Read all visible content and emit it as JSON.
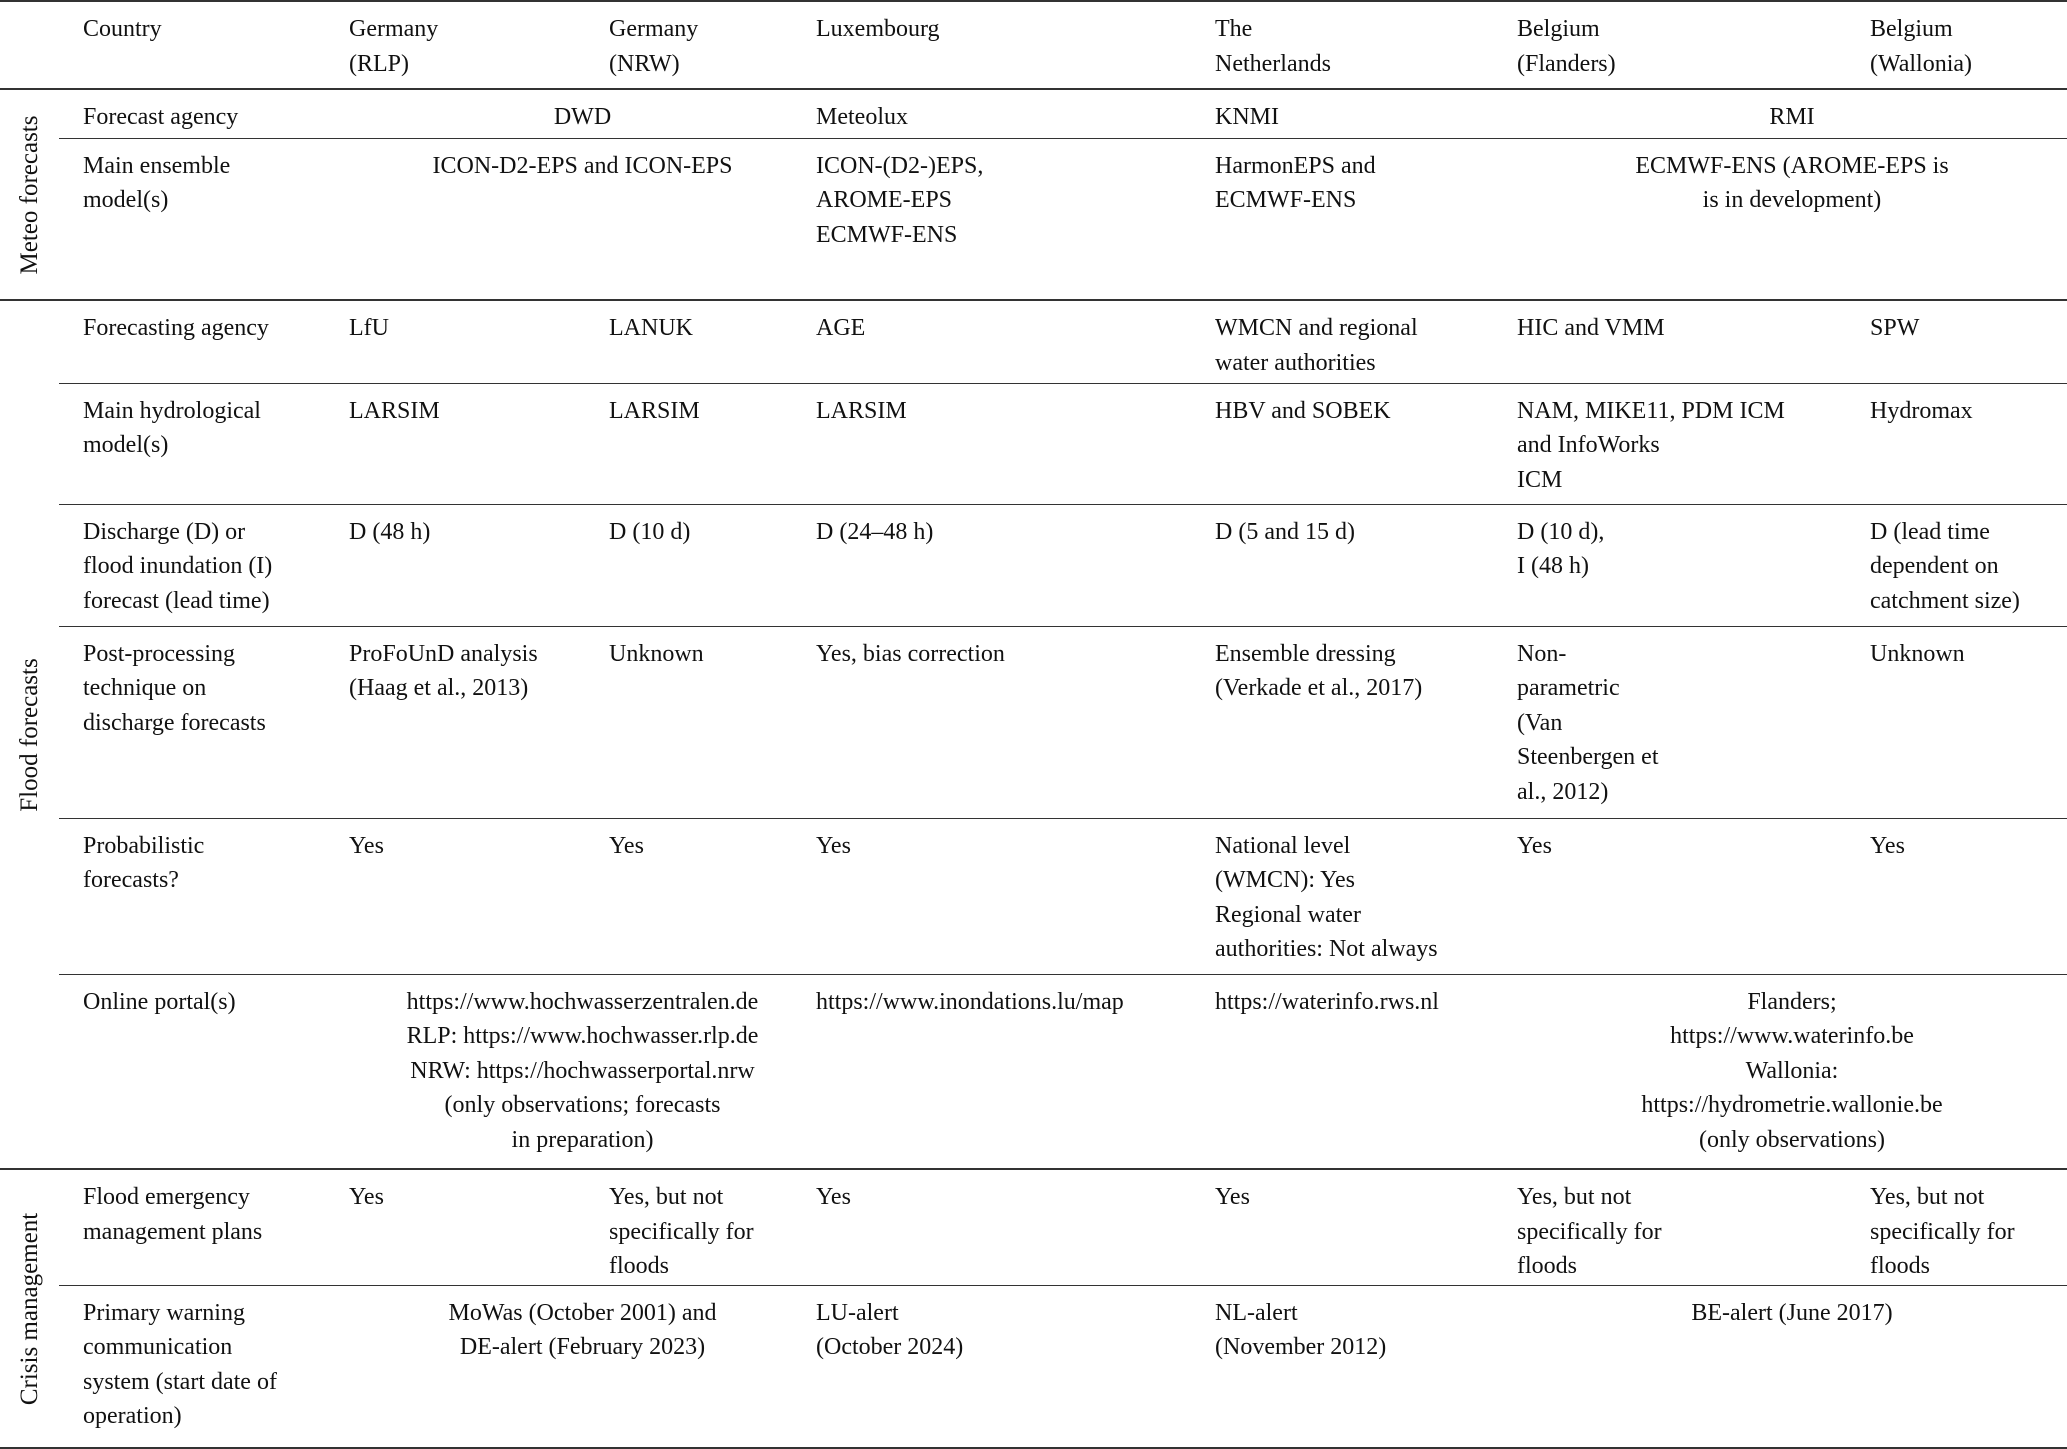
{
  "header": [
    "Country",
    [
      "Germany",
      "(RLP)"
    ],
    [
      "Germany",
      "(NRW)"
    ],
    [
      "Luxembourg"
    ],
    [
      "The",
      "Netherlands"
    ],
    [
      "Belgium",
      "(Flanders)"
    ],
    [
      "Belgium",
      "(Wallonia)"
    ]
  ],
  "groups": [
    {
      "label": "Meteo forecasts",
      "rows": [
        {
          "label": [
            "Forecast agency"
          ],
          "cells": [
            {
              "span": 2,
              "center": true,
              "lines": [
                "DWD"
              ]
            },
            {
              "lines": [
                "Meteolux"
              ]
            },
            {
              "lines": [
                "KNMI"
              ]
            },
            {
              "span": 2,
              "center": true,
              "lines": [
                "RMI"
              ]
            }
          ]
        },
        {
          "label": [
            "Main ensemble",
            "model(s)"
          ],
          "cells": [
            {
              "span": 2,
              "center": true,
              "lines": [
                "ICON-D2-EPS and ICON-EPS"
              ]
            },
            {
              "lines": [
                "ICON-(D2-)EPS,",
                "AROME-EPS",
                "ECMWF-ENS"
              ]
            },
            {
              "lines": [
                "HarmonEPS and",
                "ECMWF-ENS"
              ]
            },
            {
              "span": 2,
              "center": true,
              "lines": [
                "ECMWF-ENS (AROME-EPS is",
                "is in development)"
              ]
            }
          ]
        }
      ]
    },
    {
      "label": "Flood forecasts",
      "rows": [
        {
          "label": [
            "Forecasting agency"
          ],
          "cells": [
            {
              "lines": [
                "LfU"
              ]
            },
            {
              "lines": [
                "LANUK"
              ]
            },
            {
              "lines": [
                "AGE"
              ]
            },
            {
              "lines": [
                "WMCN and regional",
                "water authorities"
              ]
            },
            {
              "lines": [
                "HIC and VMM"
              ]
            },
            {
              "lines": [
                "SPW"
              ]
            }
          ]
        },
        {
          "label": [
            "Main hydrological",
            "model(s)"
          ],
          "cells": [
            {
              "lines": [
                "LARSIM"
              ]
            },
            {
              "lines": [
                "LARSIM"
              ]
            },
            {
              "lines": [
                "LARSIM"
              ]
            },
            {
              "lines": [
                "HBV and SOBEK"
              ]
            },
            {
              "lines": [
                "NAM, MIKE11, PDM ICM",
                "and InfoWorks",
                "ICM"
              ]
            },
            {
              "lines": [
                "Hydromax"
              ]
            }
          ]
        },
        {
          "label": [
            "Discharge (D) or",
            "flood inundation (I)",
            "forecast (lead time)"
          ],
          "cells": [
            {
              "lines": [
                "D (48 h)"
              ]
            },
            {
              "lines": [
                "D (10 d)"
              ]
            },
            {
              "lines": [
                "D (24–48 h)"
              ]
            },
            {
              "lines": [
                "D (5 and 15 d)"
              ]
            },
            {
              "lines": [
                "D (10 d),",
                "I (48 h)"
              ]
            },
            {
              "lines": [
                "D (lead time",
                "dependent on",
                "catchment size)"
              ]
            }
          ]
        },
        {
          "label": [
            "Post-processing",
            "technique on",
            "discharge forecasts"
          ],
          "cells": [
            {
              "lines": [
                "ProFoUnD analysis",
                "(Haag et al., 2013)"
              ]
            },
            {
              "lines": [
                "Unknown"
              ]
            },
            {
              "lines": [
                "Yes, bias correction"
              ]
            },
            {
              "lines": [
                "Ensemble dressing",
                "(Verkade et al., 2017)"
              ]
            },
            {
              "lines": [
                "Non-",
                "parametric",
                "(Van",
                "Steenbergen et",
                "al., 2012)"
              ]
            },
            {
              "lines": [
                "Unknown"
              ]
            }
          ]
        },
        {
          "label": [
            "Probabilistic",
            "forecasts?"
          ],
          "cells": [
            {
              "lines": [
                "Yes"
              ]
            },
            {
              "lines": [
                "Yes"
              ]
            },
            {
              "lines": [
                "Yes"
              ]
            },
            {
              "lines": [
                "National level",
                "(WMCN): Yes",
                "Regional water",
                "authorities: Not always"
              ]
            },
            {
              "lines": [
                "Yes"
              ]
            },
            {
              "lines": [
                "Yes"
              ]
            }
          ]
        },
        {
          "label": [
            "Online portal(s)"
          ],
          "cells": [
            {
              "span": 2,
              "center": true,
              "lines": [
                "https://www.hochwasserzentralen.de",
                "RLP: https://www.hochwasser.rlp.de",
                "NRW: https://hochwasserportal.nrw",
                "(only observations; forecasts",
                "in preparation)"
              ]
            },
            {
              "lines": [
                "https://www.inondations.lu/map"
              ]
            },
            {
              "lines": [
                "https://waterinfo.rws.nl"
              ]
            },
            {
              "span": 2,
              "center": true,
              "lines": [
                "Flanders;",
                "https://www.waterinfo.be",
                "Wallonia:",
                "https://hydrometrie.wallonie.be",
                "(only observations)"
              ]
            }
          ]
        }
      ]
    },
    {
      "label": "Crisis management",
      "rows": [
        {
          "label": [
            "Flood emergency",
            "management plans"
          ],
          "cells": [
            {
              "lines": [
                "Yes"
              ]
            },
            {
              "lines": [
                "Yes, but not",
                "specifically for",
                "floods"
              ]
            },
            {
              "lines": [
                "Yes"
              ]
            },
            {
              "lines": [
                "Yes"
              ]
            },
            {
              "lines": [
                "Yes, but not",
                "specifically for",
                "floods"
              ]
            },
            {
              "lines": [
                "Yes, but not",
                "specifically for",
                "floods"
              ]
            }
          ]
        },
        {
          "label": [
            "Primary warning",
            "communication",
            "system (start date of",
            "operation)"
          ],
          "cells": [
            {
              "span": 2,
              "center": true,
              "lines": [
                "MoWas (October 2001) and",
                "DE-alert (February 2023)"
              ]
            },
            {
              "lines": [
                "LU-alert",
                "(October 2024)"
              ]
            },
            {
              "lines": [
                "NL-alert",
                "(November 2012)"
              ]
            },
            {
              "span": 2,
              "center": true,
              "lines": [
                "BE-alert (June 2017)"
              ]
            }
          ]
        }
      ]
    }
  ]
}
